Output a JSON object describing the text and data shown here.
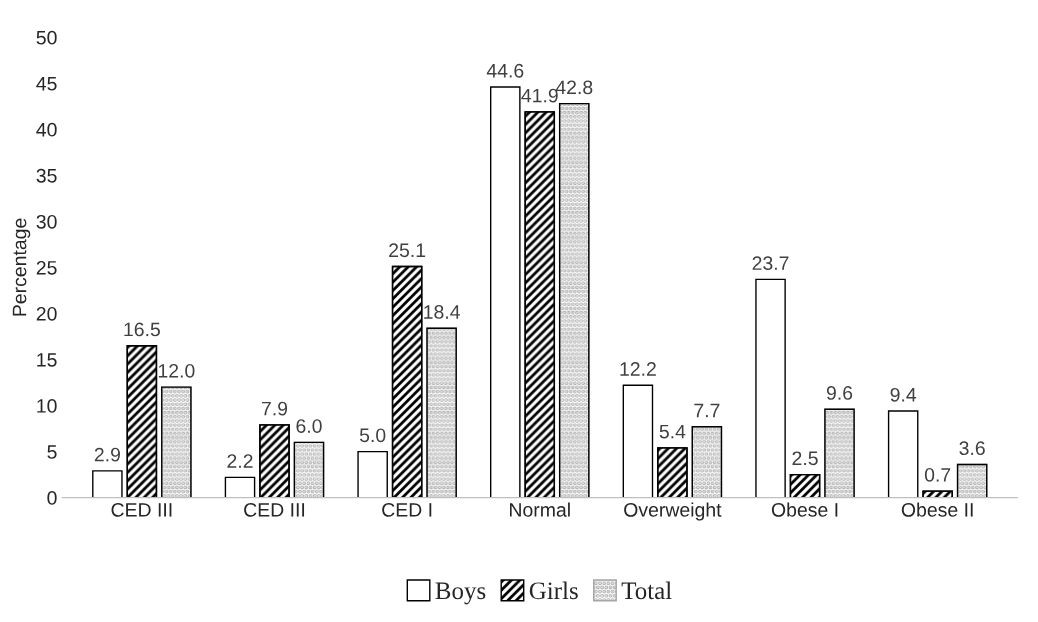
{
  "chart_data": {
    "type": "bar",
    "ylabel": "Percentage",
    "categories": [
      "CED III",
      "CED III",
      "CED I",
      "Normal",
      "Overweight",
      "Obese I",
      "Obese II"
    ],
    "series": [
      {
        "name": "Boys",
        "color": "#ffffff",
        "values": [
          2.9,
          2.2,
          5.0,
          44.6,
          12.2,
          23.7,
          9.4
        ],
        "value_labels": [
          "2.9",
          "2.2",
          "5.0",
          "44.6",
          "12.2",
          "23.7",
          "9.4"
        ]
      },
      {
        "name": "Girls",
        "color": "#000000",
        "values": [
          16.5,
          7.9,
          25.1,
          41.9,
          5.4,
          2.5,
          0.7
        ],
        "value_labels": [
          "16.5",
          "7.9",
          "25.1",
          "41.9",
          "5.4",
          "2.5",
          "0.7"
        ]
      },
      {
        "name": "Total",
        "color": "#a6a6a6",
        "values": [
          12.0,
          6.0,
          18.4,
          42.8,
          7.7,
          9.6,
          3.6
        ],
        "value_labels": [
          "12.0",
          "6.0",
          "18.4",
          "42.8",
          "7.7",
          "9.6",
          "3.6"
        ]
      }
    ],
    "ylim": [
      0,
      50
    ],
    "yticks": [
      0,
      5,
      10,
      15,
      20,
      25,
      30,
      35,
      40,
      45,
      50
    ],
    "grid": false,
    "legend": "bottom"
  }
}
